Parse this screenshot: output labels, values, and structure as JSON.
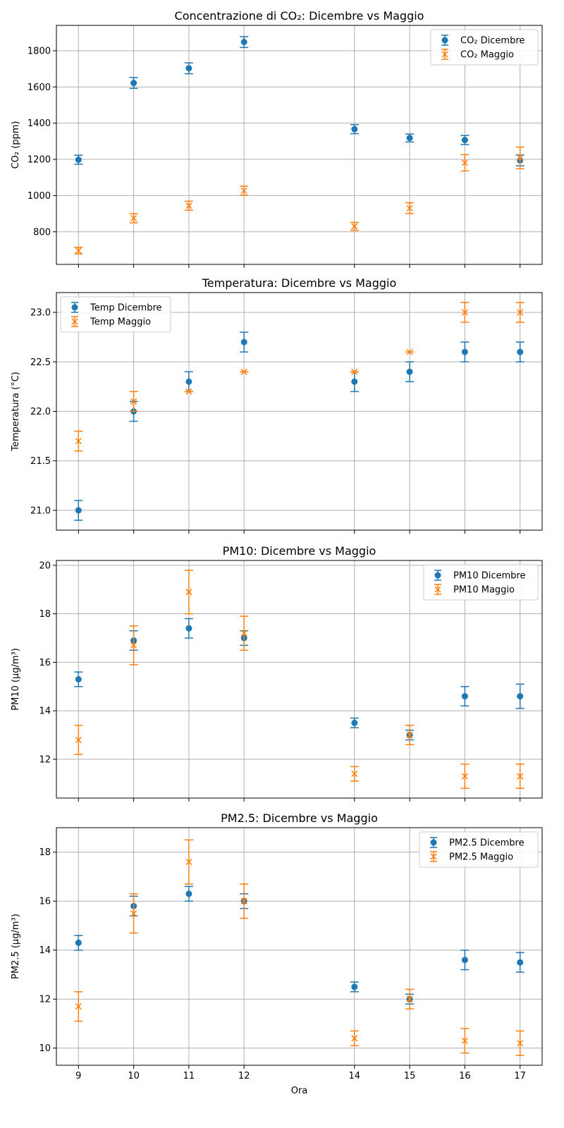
{
  "colors": {
    "dec": "#1f77b4",
    "may": "#ff7f0e",
    "grid": "#b0b0b0"
  },
  "xlabel": "Ora",
  "x_ticks": [
    9,
    10,
    11,
    12,
    14,
    15,
    16,
    17
  ],
  "chart_data": [
    {
      "type": "scatter",
      "title": "Concentrazione di CO₂: Dicembre vs Maggio",
      "ylabel": "CO₂ (ppm)",
      "xlabel": "",
      "ylim": [
        620,
        1940
      ],
      "yticks": [
        800,
        1000,
        1200,
        1400,
        1600,
        1800
      ],
      "grid": true,
      "legend": "top-right",
      "x": [
        9,
        10,
        11,
        12,
        14,
        15,
        16,
        17
      ],
      "series": [
        {
          "name": "CO₂ Dicembre",
          "marker": "circle",
          "values": [
            1198,
            1622,
            1703,
            1848,
            1367,
            1318,
            1307,
            1194
          ],
          "errors": [
            25,
            30,
            30,
            30,
            25,
            22,
            25,
            30
          ]
        },
        {
          "name": "CO₂ Maggio",
          "marker": "x",
          "values": [
            696,
            875,
            944,
            1027,
            830,
            930,
            1181,
            1208
          ],
          "errors": [
            18,
            25,
            25,
            25,
            22,
            30,
            45,
            60
          ]
        }
      ]
    },
    {
      "type": "scatter",
      "title": "Temperatura: Dicembre vs Maggio",
      "ylabel": "Temperatura (°C)",
      "xlabel": "",
      "ylim": [
        20.8,
        23.2
      ],
      "yticks": [
        "21.0",
        "21.5",
        "22.0",
        "22.5",
        "23.0"
      ],
      "grid": true,
      "legend": "top-left",
      "x": [
        9,
        10,
        11,
        12,
        14,
        15,
        16,
        17
      ],
      "series": [
        {
          "name": "Temp Dicembre",
          "marker": "circle",
          "values": [
            21.0,
            22.0,
            22.3,
            22.7,
            22.3,
            22.4,
            22.6,
            22.6
          ],
          "errors": [
            0.1,
            0.1,
            0.1,
            0.1,
            0.1,
            0.1,
            0.1,
            0.1
          ]
        },
        {
          "name": "Temp Maggio",
          "marker": "x",
          "values": [
            21.7,
            22.1,
            22.2,
            22.4,
            22.4,
            22.6,
            23.0,
            23.0
          ],
          "errors": [
            0.1,
            0.1,
            0.0,
            0.0,
            0.0,
            0.0,
            0.1,
            0.1
          ]
        }
      ]
    },
    {
      "type": "scatter",
      "title": "PM10: Dicembre vs Maggio",
      "ylabel": "PM10 (µg/m³)",
      "xlabel": "",
      "ylim": [
        10.4,
        20.2
      ],
      "yticks": [
        12,
        14,
        16,
        18,
        20
      ],
      "grid": true,
      "legend": "top-right",
      "x": [
        9,
        10,
        11,
        12,
        14,
        15,
        16,
        17
      ],
      "series": [
        {
          "name": "PM10 Dicembre",
          "marker": "circle",
          "values": [
            15.3,
            16.9,
            17.4,
            17.0,
            13.5,
            13.0,
            14.6,
            14.6
          ],
          "errors": [
            0.3,
            0.4,
            0.4,
            0.3,
            0.2,
            0.2,
            0.4,
            0.5
          ]
        },
        {
          "name": "PM10 Maggio",
          "marker": "x",
          "values": [
            12.8,
            16.7,
            18.9,
            17.2,
            11.4,
            13.0,
            11.3,
            11.3
          ],
          "errors": [
            0.6,
            0.8,
            0.9,
            0.7,
            0.3,
            0.4,
            0.5,
            0.5
          ]
        }
      ]
    },
    {
      "type": "scatter",
      "title": "PM2.5: Dicembre vs Maggio",
      "ylabel": "PM2.5 (µg/m³)",
      "xlabel": "Ora",
      "ylim": [
        9.3,
        19.0
      ],
      "yticks": [
        10,
        12,
        14,
        16,
        18
      ],
      "grid": true,
      "legend": "top-right",
      "x": [
        9,
        10,
        11,
        12,
        14,
        15,
        16,
        17
      ],
      "series": [
        {
          "name": "PM2.5 Dicembre",
          "marker": "circle",
          "values": [
            14.3,
            15.8,
            16.3,
            16.0,
            12.5,
            12.0,
            13.6,
            13.5
          ],
          "errors": [
            0.3,
            0.4,
            0.3,
            0.3,
            0.2,
            0.2,
            0.4,
            0.4
          ]
        },
        {
          "name": "PM2.5 Maggio",
          "marker": "x",
          "values": [
            11.7,
            15.5,
            17.6,
            16.0,
            10.4,
            12.0,
            10.3,
            10.2
          ],
          "errors": [
            0.6,
            0.8,
            0.9,
            0.7,
            0.3,
            0.4,
            0.5,
            0.5
          ]
        }
      ]
    }
  ]
}
